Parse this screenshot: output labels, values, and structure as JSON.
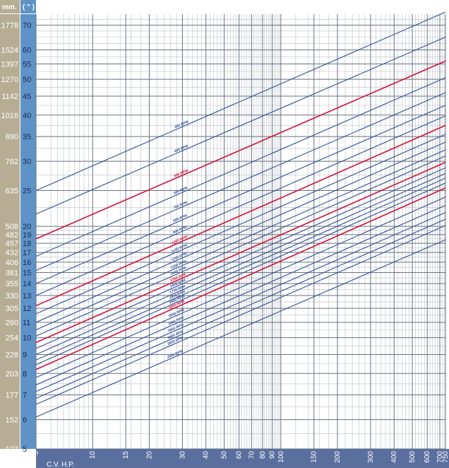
{
  "colors": {
    "mm_column": "#b7ad94",
    "in_column": "#5f93c8",
    "x_axis_band": "#5b6f9f",
    "grid_major": "#6a7280",
    "grid_minor": "#b9bec6",
    "blue_line": "#2f4f93",
    "red_line": "#d0103a",
    "header_text": "#ffffff"
  },
  "header": {
    "mm_label": "mm.",
    "in_label": "( \" )"
  },
  "chart_data": {
    "type": "line",
    "xlabel": "C.V.  H.P.",
    "x_scale": "log",
    "y_scale": "log",
    "xlim": [
      5,
      750
    ],
    "ylim": [
      5,
      75
    ],
    "x_ticks": [
      5,
      10,
      15,
      20,
      30,
      40,
      50,
      60,
      70,
      80,
      90,
      100,
      150,
      200,
      300,
      400,
      500,
      600,
      700,
      750
    ],
    "y_ticks_in": [
      5,
      6,
      7,
      8,
      9,
      10,
      11,
      12,
      13,
      14,
      15,
      16,
      17,
      18,
      19,
      20,
      25,
      30,
      35,
      40,
      45,
      50,
      55,
      60,
      70
    ],
    "y_ticks_mm": [
      127,
      152,
      177,
      203,
      228,
      254,
      280,
      305,
      330,
      355,
      381,
      406,
      432,
      457,
      482,
      508,
      635,
      762,
      890,
      1016,
      1142,
      1270,
      1397,
      1524,
      1778
    ],
    "grid": true,
    "series": [
      {
        "name": "300 RPM",
        "color": "blue",
        "y_at_x5": 25.0,
        "y_at_x750": 76.0
      },
      {
        "name": "400 RPM",
        "color": "blue",
        "y_at_x5": 21.6,
        "y_at_x750": 65.0
      },
      {
        "name": "500 RPM",
        "color": "red",
        "y_at_x5": 18.5,
        "y_at_x750": 56.0
      },
      {
        "name": "600 RPM",
        "color": "blue",
        "y_at_x5": 16.6,
        "y_at_x750": 50.5
      },
      {
        "name": "700 RPM",
        "color": "blue",
        "y_at_x5": 15.2,
        "y_at_x750": 46.0
      },
      {
        "name": "800 RPM",
        "color": "blue",
        "y_at_x5": 14.0,
        "y_at_x750": 42.5
      },
      {
        "name": "900 RPM",
        "color": "blue",
        "y_at_x5": 13.0,
        "y_at_x750": 39.8
      },
      {
        "name": "1000 RPM",
        "color": "red",
        "y_at_x5": 12.2,
        "y_at_x750": 37.5
      },
      {
        "name": "1100 RPM",
        "color": "blue",
        "y_at_x5": 11.6,
        "y_at_x750": 35.5
      },
      {
        "name": "1200 RPM",
        "color": "blue",
        "y_at_x5": 11.0,
        "y_at_x750": 33.8
      },
      {
        "name": "1300 RPM",
        "color": "blue",
        "y_at_x5": 10.5,
        "y_at_x750": 32.2
      },
      {
        "name": "1400 RPM",
        "color": "blue",
        "y_at_x5": 10.1,
        "y_at_x750": 31.0
      },
      {
        "name": "1500 RPM",
        "color": "red",
        "y_at_x5": 9.7,
        "y_at_x750": 29.8
      },
      {
        "name": "1600 RPM",
        "color": "blue",
        "y_at_x5": 9.35,
        "y_at_x750": 28.8
      },
      {
        "name": "1700 RPM",
        "color": "blue",
        "y_at_x5": 9.0,
        "y_at_x750": 27.8
      },
      {
        "name": "1800 RPM",
        "color": "blue",
        "y_at_x5": 8.7,
        "y_at_x750": 27.0
      },
      {
        "name": "1900 RPM",
        "color": "blue",
        "y_at_x5": 8.45,
        "y_at_x750": 26.2
      },
      {
        "name": "2000 RPM",
        "color": "red",
        "y_at_x5": 8.2,
        "y_at_x750": 25.4
      },
      {
        "name": "2200 RPM",
        "color": "blue",
        "y_at_x5": 7.8,
        "y_at_x750": 24.0
      },
      {
        "name": "2400 RPM",
        "color": "blue",
        "y_at_x5": 7.45,
        "y_at_x750": 22.8
      },
      {
        "name": "2600 RPM",
        "color": "blue",
        "y_at_x5": 7.15,
        "y_at_x750": 21.8
      },
      {
        "name": "2800 RPM",
        "color": "blue",
        "y_at_x5": 6.85,
        "y_at_x750": 20.9
      },
      {
        "name": "3000 RPM",
        "color": "blue",
        "y_at_x5": 6.6,
        "y_at_x750": 20.1
      },
      {
        "name": "3500 RPM",
        "color": "blue",
        "y_at_x5": 6.1,
        "y_at_x750": 18.4
      }
    ]
  }
}
